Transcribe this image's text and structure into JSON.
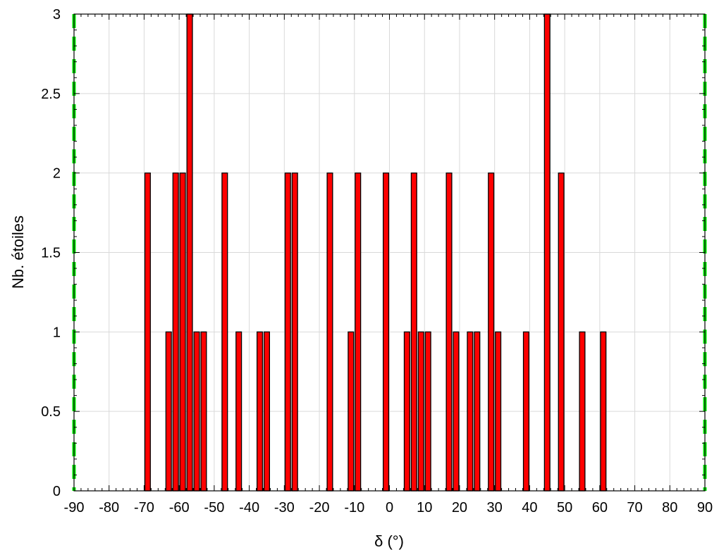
{
  "chart_data": {
    "type": "bar",
    "title": "",
    "xlabel": "δ (°)",
    "ylabel": "Nb. étoiles",
    "xlim": [
      -90,
      90
    ],
    "ylim": [
      0,
      3
    ],
    "grid": true,
    "bar_width_deg": 2,
    "x_ticks": [
      -90,
      -80,
      -70,
      -60,
      -50,
      -40,
      -30,
      -20,
      -10,
      0,
      10,
      20,
      30,
      40,
      50,
      60,
      70,
      80,
      90
    ],
    "y_ticks": [
      0,
      0.5,
      1,
      1.5,
      2,
      2.5,
      3
    ],
    "x_tick_labels": [
      "-90",
      "-80",
      "-70",
      "-60",
      "-50",
      "-40",
      "-30",
      "-20",
      "-10",
      "0",
      "10",
      "20",
      "30",
      "40",
      "50",
      "60",
      "70",
      "80",
      "90"
    ],
    "y_tick_labels": [
      "0",
      "0.5",
      "1",
      "1.5",
      "2",
      "2.5",
      "3"
    ],
    "bins": [
      {
        "x": -69,
        "value": 2
      },
      {
        "x": -63,
        "value": 1
      },
      {
        "x": -61,
        "value": 2
      },
      {
        "x": -59,
        "value": 2
      },
      {
        "x": -57,
        "value": 3
      },
      {
        "x": -55,
        "value": 1
      },
      {
        "x": -53,
        "value": 1
      },
      {
        "x": -47,
        "value": 2
      },
      {
        "x": -43,
        "value": 1
      },
      {
        "x": -37,
        "value": 1
      },
      {
        "x": -35,
        "value": 1
      },
      {
        "x": -29,
        "value": 2
      },
      {
        "x": -27,
        "value": 2
      },
      {
        "x": -17,
        "value": 2
      },
      {
        "x": -11,
        "value": 1
      },
      {
        "x": -9,
        "value": 2
      },
      {
        "x": -1,
        "value": 2
      },
      {
        "x": 5,
        "value": 1
      },
      {
        "x": 7,
        "value": 2
      },
      {
        "x": 9,
        "value": 1
      },
      {
        "x": 11,
        "value": 1
      },
      {
        "x": 17,
        "value": 2
      },
      {
        "x": 19,
        "value": 1
      },
      {
        "x": 23,
        "value": 1
      },
      {
        "x": 25,
        "value": 1
      },
      {
        "x": 29,
        "value": 2
      },
      {
        "x": 31,
        "value": 1
      },
      {
        "x": 39,
        "value": 1
      },
      {
        "x": 45,
        "value": 3
      },
      {
        "x": 49,
        "value": 2
      },
      {
        "x": 55,
        "value": 1
      },
      {
        "x": 61,
        "value": 1
      }
    ],
    "reference_lines": [
      -90,
      90
    ],
    "colors": {
      "bar_fill": "#ff0000",
      "bar_edge": "#000000",
      "grid": "#d9d9d9",
      "reference_line": "#00e600",
      "axis": "#000000"
    }
  }
}
